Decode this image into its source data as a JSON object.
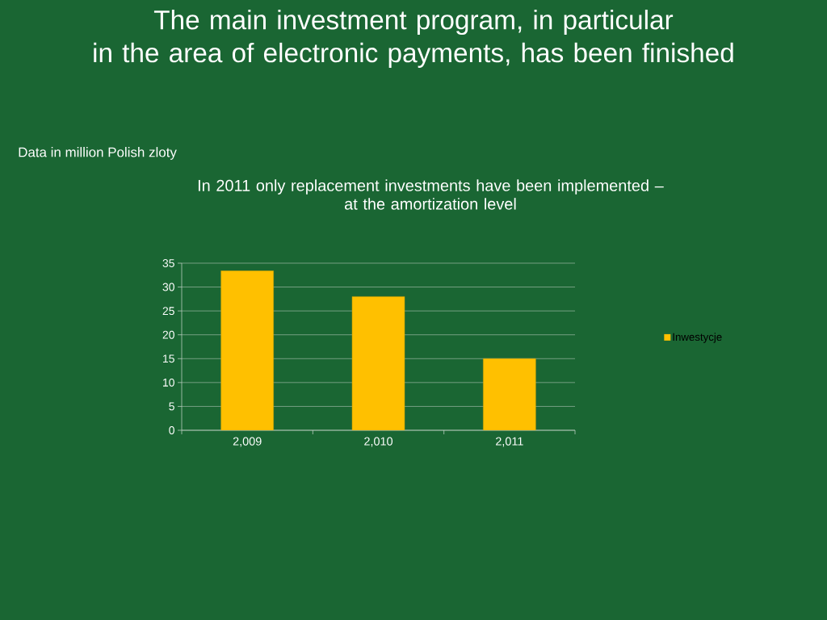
{
  "chart_data": {
    "type": "bar",
    "title": "The main investment program, in particular\nin the area of electronic payments, has been finished",
    "subtitle": "In 2011 only replacement investments have been implemented –\nat the amortization level",
    "annotations": [
      "Data in million Polish zloty"
    ],
    "categories": [
      "2,009",
      "2,010",
      "2,011"
    ],
    "series": [
      {
        "name": "Inwestycje",
        "color": "#ffc000",
        "values": [
          33.4,
          28.0,
          15.0
        ]
      }
    ],
    "ylim": [
      0,
      35
    ],
    "yticks": [
      0,
      5,
      10,
      15,
      20,
      25,
      30,
      35
    ],
    "grid": "y",
    "legend": "right"
  }
}
